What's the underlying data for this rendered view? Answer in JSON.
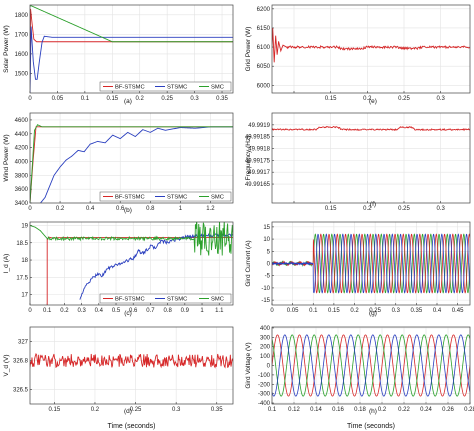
{
  "chart_data": [
    {
      "id": "a",
      "type": "line",
      "caption": "(a)",
      "ylabel": "Solar Power (W)",
      "xlabel": "",
      "xlim": [
        0,
        0.37
      ],
      "ylim": [
        1400,
        1850
      ],
      "xticks": [
        0,
        0.05,
        0.1,
        0.15,
        0.2,
        0.25,
        0.3,
        0.35
      ],
      "xticklabels": [
        "0",
        "0.05",
        "0.1",
        "0.15",
        "0.2",
        "0.25",
        "0.3",
        "0.35"
      ],
      "yticks": [
        1500,
        1600,
        1700,
        1800
      ],
      "yticklabels": [
        "1500",
        "1600",
        "1700",
        "1800"
      ],
      "grid": true,
      "legend": "bottom-right",
      "series": [
        {
          "name": "BF-STSMC",
          "color": "#d62728",
          "x": [
            0,
            0.001,
            0.004,
            0.007,
            0.012,
            0.02,
            0.37
          ],
          "y": [
            1400,
            1830,
            1750,
            1675,
            1662,
            1662,
            1662
          ]
        },
        {
          "name": "STSMC",
          "color": "#2a3fbf",
          "x": [
            0,
            0.002,
            0.006,
            0.01,
            0.013,
            0.017,
            0.022,
            0.026,
            0.04,
            0.37
          ],
          "y": [
            1400,
            1740,
            1560,
            1470,
            1470,
            1560,
            1660,
            1690,
            1685,
            1685
          ]
        },
        {
          "name": "SMC",
          "color": "#2ca02c",
          "x": [
            0,
            0.003,
            0.15,
            0.37
          ],
          "y": [
            1845,
            1845,
            1662,
            1662
          ]
        }
      ]
    },
    {
      "id": "b",
      "type": "line",
      "caption": "(b)",
      "ylabel": "Wind Power (W)",
      "xlabel": "",
      "xlim": [
        0,
        1.35
      ],
      "ylim": [
        3400,
        4700
      ],
      "xticks": [
        0,
        0.2,
        0.4,
        0.6,
        0.8,
        1,
        1.2
      ],
      "xticklabels": [
        "0",
        "0.2",
        "0.4",
        "0.6",
        "0.8",
        "1",
        "1.2"
      ],
      "yticks": [
        3400,
        3600,
        3800,
        4000,
        4200,
        4400,
        4600
      ],
      "yticklabels": [
        "3400",
        "3600",
        "3800",
        "4000",
        "4200",
        "4400",
        "4600"
      ],
      "grid": true,
      "legend": "bottom-right",
      "series": [
        {
          "name": "BF-STSMC",
          "color": "#d62728",
          "x": [
            0,
            0.02,
            0.04,
            0.06,
            1.35
          ],
          "y": [
            3400,
            4000,
            4500,
            4500,
            4500
          ]
        },
        {
          "name": "STSMC",
          "color": "#2a3fbf",
          "x": [
            0.07,
            0.1,
            0.13,
            0.16,
            0.2,
            0.24,
            0.28,
            0.32,
            0.36,
            0.4,
            0.45,
            0.5,
            0.55,
            0.6,
            0.65,
            0.7,
            0.75,
            0.8,
            0.85,
            0.9,
            1.0,
            1.1,
            1.2,
            1.35
          ],
          "y": [
            3400,
            3480,
            3640,
            3800,
            3920,
            4020,
            4080,
            4160,
            4140,
            4250,
            4290,
            4270,
            4380,
            4330,
            4420,
            4360,
            4460,
            4420,
            4480,
            4450,
            4490,
            4480,
            4500,
            4500
          ]
        },
        {
          "name": "SMC",
          "color": "#2ca02c",
          "x": [
            0,
            0.03,
            0.05,
            0.08,
            1.35
          ],
          "y": [
            3400,
            4450,
            4530,
            4500,
            4500
          ]
        }
      ]
    },
    {
      "id": "c",
      "type": "line",
      "caption": "(c)",
      "ylabel": "I_d (A)",
      "xlabel": "",
      "xlim": [
        0,
        1.18
      ],
      "ylim": [
        16.7,
        19.1
      ],
      "xticks": [
        0,
        0.1,
        0.2,
        0.3,
        0.4,
        0.5,
        0.6,
        0.7,
        0.8,
        0.9,
        1,
        1.1
      ],
      "xticklabels": [
        "0",
        "0.1",
        "0.2",
        "0.3",
        "0.4",
        "0.5",
        "0.6",
        "0.7",
        "0.8",
        "0.9",
        "1",
        "1.1"
      ],
      "yticks": [
        17,
        17.5,
        18,
        18.5,
        19
      ],
      "yticklabels": [
        "17",
        "17.5",
        "18",
        "18.5",
        "19"
      ],
      "grid": true,
      "legend": "bottom-right",
      "series": [
        {
          "name": "BF-STSMC",
          "color": "#d62728",
          "x": [
            0.1,
            0.1,
            0.11,
            0.13,
            0.2,
            0.4,
            0.6,
            0.8,
            1.0,
            1.18
          ],
          "y": [
            16.7,
            18.6,
            18.66,
            18.64,
            18.65,
            18.65,
            18.65,
            18.65,
            18.65,
            18.65
          ]
        },
        {
          "name": "STSMC",
          "color": "#2a3fbf",
          "x": [
            0.29,
            0.31,
            0.33,
            0.36,
            0.39,
            0.42,
            0.45,
            0.5,
            0.55,
            0.6,
            0.63,
            0.66,
            0.7,
            0.73,
            0.76,
            0.8,
            0.85,
            0.9,
            0.95,
            1.0,
            1.1,
            1.18
          ],
          "y": [
            16.9,
            17.1,
            17.3,
            17.45,
            17.6,
            17.55,
            17.75,
            17.85,
            17.95,
            18.05,
            18.25,
            18.2,
            18.4,
            18.35,
            18.55,
            18.5,
            18.6,
            18.65,
            18.7,
            18.7,
            18.72,
            18.72
          ]
        },
        {
          "name": "SMC",
          "color": "#2ca02c",
          "x": [
            0.0,
            0.03,
            0.06,
            0.1,
            0.2,
            0.3,
            0.4,
            0.5,
            0.6,
            0.7,
            0.8,
            0.9,
            1.0,
            1.18
          ],
          "y": [
            19.0,
            18.95,
            18.85,
            18.62,
            18.62,
            18.62,
            18.62,
            18.62,
            18.62,
            18.62,
            18.62,
            18.62,
            18.62,
            18.62
          ]
        }
      ]
    },
    {
      "id": "d",
      "type": "line",
      "caption": "(d)",
      "ylabel": "V_d (V)",
      "xlabel": "Time (seconds)",
      "xlim": [
        0.12,
        0.37
      ],
      "ylim": [
        326.35,
        327.15
      ],
      "xticks": [
        0.15,
        0.2,
        0.25,
        0.3,
        0.35
      ],
      "xticklabels": [
        "0.15",
        "0.2",
        "0.25",
        "0.3",
        "0.35"
      ],
      "yticks": [
        326.5,
        326.8,
        327
      ],
      "yticklabels": [
        "326.5",
        "326.8",
        "327"
      ],
      "grid": true,
      "legend": "none",
      "series": [
        {
          "name": "",
          "color": "#d62728",
          "x": [
            0.12,
            0.37
          ],
          "y": [
            326.8,
            326.8
          ]
        }
      ]
    },
    {
      "id": "e",
      "type": "line",
      "caption": "(e)",
      "ylabel": "Grid Power (W)",
      "xlabel": "",
      "xlim": [
        0.07,
        0.34
      ],
      "ylim": [
        5980,
        6210
      ],
      "xticks": [
        0.1,
        0.15,
        0.2,
        0.25,
        0.3
      ],
      "xticklabels": [
        "",
        "0.15",
        "0.2",
        "0.25",
        "0.3"
      ],
      "yticks": [
        6000,
        6050,
        6100,
        6150,
        6200
      ],
      "yticklabels": [
        "6000",
        "6050",
        "6100",
        "6150",
        "6200"
      ],
      "grid": true,
      "legend": "none",
      "series": [
        {
          "name": "",
          "color": "#d62728",
          "x": [
            0.07,
            0.071,
            0.073,
            0.075,
            0.077,
            0.079,
            0.082,
            0.085,
            0.09,
            0.1,
            0.13,
            0.16,
            0.165,
            0.19,
            0.2,
            0.24,
            0.245,
            0.27,
            0.275,
            0.3,
            0.34
          ],
          "y": [
            6100,
            6150,
            6060,
            6130,
            6080,
            6115,
            6090,
            6105,
            6100,
            6100,
            6100,
            6100,
            6095,
            6095,
            6100,
            6100,
            6097,
            6097,
            6101,
            6100,
            6100
          ]
        }
      ]
    },
    {
      "id": "f",
      "type": "line",
      "caption": "(f)",
      "ylabel": "Frequency (Hz)",
      "xlabel": "",
      "xlim": [
        0.07,
        0.34
      ],
      "ylim": [
        49.99157,
        49.99195
      ],
      "xticks": [
        0.1,
        0.15,
        0.2,
        0.25,
        0.3
      ],
      "xticklabels": [
        "",
        "0.15",
        "0.2",
        "0.25",
        "0.3"
      ],
      "yticks": [
        49.99165,
        49.9917,
        49.99175,
        49.9918,
        49.99185,
        49.9919
      ],
      "yticklabels": [
        "49.99165",
        "49.9917",
        "49.99175",
        "49.9918",
        "49.99185",
        "49.9919"
      ],
      "grid": true,
      "legend": "none",
      "series": [
        {
          "name": "",
          "color": "#d62728",
          "x": [
            0.07,
            0.1,
            0.13,
            0.135,
            0.16,
            0.165,
            0.24,
            0.245,
            0.26,
            0.265,
            0.34
          ],
          "y": [
            49.99188,
            49.99188,
            49.99188,
            49.99189,
            49.99189,
            49.99188,
            49.99188,
            49.99189,
            49.99189,
            49.99188,
            49.99188
          ]
        }
      ]
    },
    {
      "id": "g",
      "type": "line",
      "caption": "(g)",
      "ylabel": "Gird Current (A)",
      "xlabel": "",
      "xlim": [
        0,
        0.48
      ],
      "ylim": [
        -17,
        17
      ],
      "xticks": [
        0,
        0.05,
        0.1,
        0.15,
        0.2,
        0.25,
        0.3,
        0.35,
        0.4,
        0.45
      ],
      "xticklabels": [
        "0",
        "0.05",
        "0.1",
        "0.15",
        "0.2",
        "0.25",
        "0.3",
        "0.35",
        "0.4",
        "0.45"
      ],
      "yticks": [
        -15,
        -10,
        -5,
        0,
        5,
        10,
        15
      ],
      "yticklabels": [
        "-15",
        "-10",
        "-5",
        "0",
        "5",
        "10",
        "15"
      ],
      "grid": true,
      "legend": "none",
      "series": [
        {
          "name": "",
          "color": "#2ca02c",
          "x": [
            0.02,
            0.1,
            0.1,
            0.1,
            0.48
          ],
          "y": [
            1,
            1,
            15,
            12,
            12
          ]
        },
        {
          "name": "",
          "color": "#d62728",
          "x": [
            0.02,
            0.1,
            0.1,
            0.1,
            0.48
          ],
          "y": [
            -1,
            -1,
            -15,
            -12,
            -12
          ]
        },
        {
          "name": "",
          "color": "#2a3fbf",
          "x": [
            0.02,
            0.1,
            0.1,
            0.48
          ],
          "y": [
            0,
            0,
            12,
            12
          ]
        }
      ]
    },
    {
      "id": "h",
      "type": "line",
      "caption": "(h)",
      "ylabel": "Gird Voltage (V)",
      "xlabel": "Time (seconds)",
      "xlim": [
        0.1,
        0.28
      ],
      "ylim": [
        -410,
        410
      ],
      "xticks": [
        0.1,
        0.12,
        0.14,
        0.16,
        0.18,
        0.2,
        0.22,
        0.24,
        0.26,
        0.28
      ],
      "xticklabels": [
        "0.1",
        "0.12",
        "0.14",
        "0.16",
        "0.18",
        "0.2",
        "0.22",
        "0.24",
        "0.26",
        "0.28"
      ],
      "yticks": [
        -400,
        -300,
        -200,
        -100,
        0,
        100,
        200,
        300,
        400
      ],
      "yticklabels": [
        "-400",
        "-300",
        "-200",
        "-100",
        "0",
        "100",
        "200",
        "300",
        "400"
      ],
      "grid": true,
      "legend": "none",
      "series": [
        {
          "name": "",
          "color": "#d62728",
          "x": [
            0.1,
            0.28
          ],
          "y": [
            326,
            326
          ]
        },
        {
          "name": "",
          "color": "#2ca02c",
          "x": [
            0.1,
            0.28
          ],
          "y": [
            326,
            326
          ]
        },
        {
          "name": "",
          "color": "#2a3fbf",
          "x": [
            0.1,
            0.28
          ],
          "y": [
            326,
            326
          ]
        }
      ]
    }
  ]
}
